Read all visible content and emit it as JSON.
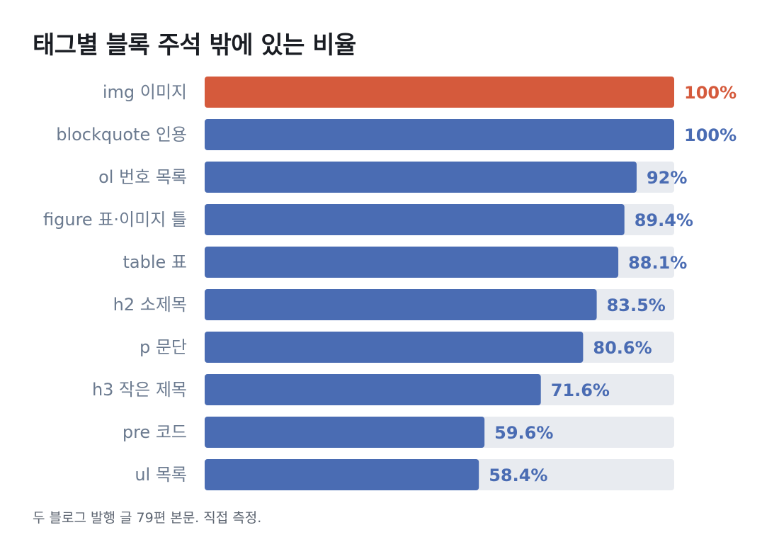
{
  "chart_data": {
    "type": "bar",
    "orientation": "horizontal",
    "title": "태그별 블록 주석 밖에 있는 비율",
    "footnote": "두 블로그 발행 글 79편 본문. 직접 측정.",
    "categories": [
      "img 이미지",
      "blockquote 인용",
      "ol 번호 목록",
      "figure 표·이미지 틀",
      "table 표",
      "h2 소제목",
      "p 문단",
      "h3 작은 제목",
      "pre 코드",
      "ul 목록"
    ],
    "values": [
      100,
      100,
      92,
      89.4,
      88.1,
      83.5,
      80.6,
      71.6,
      59.6,
      58.4
    ],
    "value_labels": [
      "100%",
      "100%",
      "92%",
      "89.4%",
      "88.1%",
      "83.5%",
      "80.6%",
      "71.6%",
      "59.6%",
      "58.4%"
    ],
    "xlim": [
      0,
      100
    ],
    "unit": "%",
    "highlight_index": 0,
    "colors": {
      "bar": "#4a6cb3",
      "highlight": "#d55a3c",
      "track": "#e8ebf0",
      "label": "#6b7a8f",
      "value": "#4a6cb3",
      "highlight_value": "#d55a3c"
    }
  }
}
